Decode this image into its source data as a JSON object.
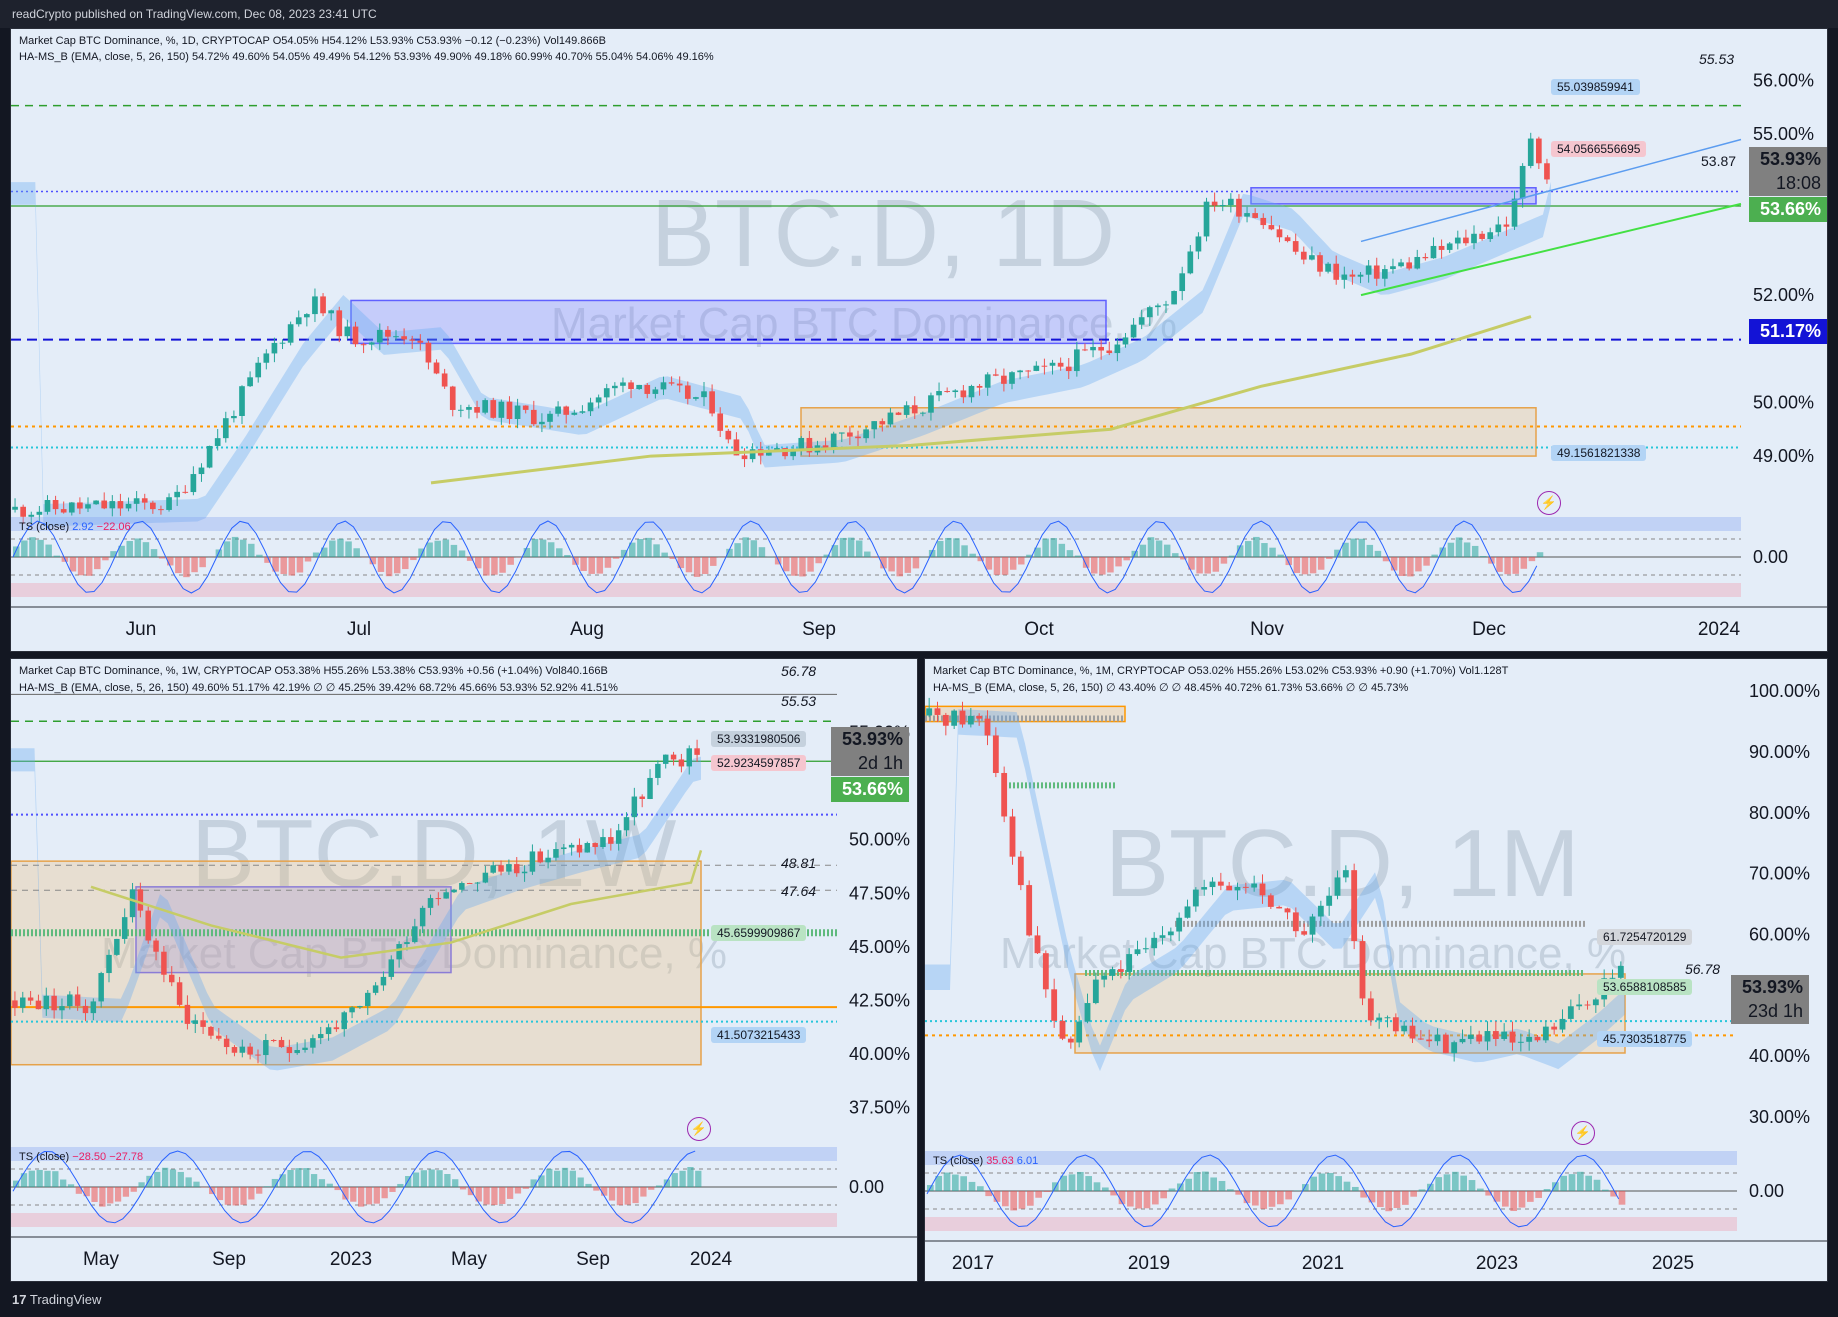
{
  "page": {
    "published": "readCrypto published on TradingView.com, Dec 08, 2023 23:41 UTC",
    "footer_brand": "TradingView",
    "footer_logo": "tradingview-logo-icon"
  },
  "colors": {
    "background": "#e4edf8",
    "candle_up": "#26a69a",
    "candle_down": "#ef5350",
    "price_tag": "#808080",
    "green_tag": "#4caf50",
    "blue_tag": "#1313d6",
    "trend_line": "#5b9cf0",
    "support_line": "#43e043"
  },
  "panels": [
    {
      "id": "daily",
      "title_line": "Market Cap BTC Dominance, %, 1D, CRYPTOCAP  O54.05%  H54.12%  L53.93%  C53.93%  −0.12 (−0.23%)  Vol149.866B",
      "indicator_line": "HA-MS_B (EMA, close, 5, 26, 150)  54.72%  49.60%  54.05%  49.49%  54.12%  53.93%  49.90%  49.18%  60.99%  40.70%  55.04%  54.06%  49.16%",
      "watermark_big": "BTC.D, 1D",
      "watermark_small": "Market Cap BTC Dominance, %",
      "ts_label": "TS (close)",
      "ts_values": [
        "2.92",
        "−22.06"
      ],
      "ts_zero": "0.00",
      "price_labels": [
        "56.00%",
        "55.00%",
        "52.00%",
        "50.00%",
        "49.00%"
      ],
      "level_labels": [
        "55.53",
        "53.87"
      ],
      "level_boxes": [
        "55.039859941",
        "54.0566556695",
        "49.1561821338"
      ],
      "price_tag": "53.93%",
      "countdown": "18:08",
      "green_tag": "53.66%",
      "blue_tag": "51.17%",
      "x_labels": [
        "Jun",
        "Jul",
        "Aug",
        "Sep",
        "Oct",
        "Nov",
        "Dec",
        "2024"
      ]
    },
    {
      "id": "weekly",
      "title_line": "Market Cap BTC Dominance, %, 1W, CRYPTOCAP  O53.38%  H55.26%  L53.38%  C53.93%  +0.56 (+1.04%)  Vol840.166B",
      "indicator_line": "HA-MS_B (EMA, close, 5, 26, 150)  49.60%  51.17%  42.19%  ∅  ∅  45.25%  39.42%  68.72%  45.66%  53.93%  52.92%  41.51%",
      "watermark_big": "BTC.D, 1W",
      "watermark_small": "Market Cap BTC Dominance, %",
      "ts_label": "TS (close)",
      "ts_values": [
        "−28.50",
        "−27.78"
      ],
      "ts_zero": "0.00",
      "price_labels": [
        "55.00%",
        "50.00%",
        "47.50%",
        "45.00%",
        "42.50%",
        "40.00%",
        "37.50%"
      ],
      "level_labels": [
        "56.78",
        "55.53",
        "48.81",
        "47.64"
      ],
      "level_boxes": [
        "53.9331980506",
        "52.9234597857",
        "45.6599909867",
        "41.5073215433"
      ],
      "price_tag": "53.93%",
      "countdown": "2d 1h",
      "green_tag": "53.66%",
      "x_labels": [
        "May",
        "Sep",
        "2023",
        "May",
        "Sep",
        "2024"
      ]
    },
    {
      "id": "monthly",
      "title_line": "Market Cap BTC Dominance, %, 1M, CRYPTOCAP  O53.02%  H55.26%  L53.02%  C53.93%  +0.90 (+1.70%)  Vol1.128T",
      "indicator_line": "HA-MS_B (EMA, close, 5, 26, 150)  ∅  43.40%  ∅  ∅  48.45%  40.72%  61.73%  53.66%  ∅  ∅  45.73%",
      "watermark_big": "BTC.D, 1M",
      "watermark_small": "Market Cap BTC Dominance, %",
      "ts_label": "TS (close)",
      "ts_values": [
        "35.63",
        "6.01"
      ],
      "ts_zero": "0.00",
      "price_labels": [
        "100.00%",
        "90.00%",
        "80.00%",
        "70.00%",
        "60.00%",
        "40.00%",
        "30.00%"
      ],
      "level_labels": [
        "56.78"
      ],
      "level_boxes": [
        "61.7254720129",
        "53.6588108585",
        "45.7303518775"
      ],
      "price_tag": "53.93%",
      "countdown": "23d 1h",
      "x_labels": [
        "2017",
        "2019",
        "2021",
        "2023",
        "2025"
      ]
    }
  ],
  "chart_data": [
    {
      "type": "candlestick",
      "title": "Market Cap BTC Dominance, %, 1D",
      "x": [
        "Jun",
        "Jul",
        "Aug",
        "Sep",
        "Oct",
        "Nov",
        "Dec"
      ],
      "close_approx": [
        48.2,
        51.3,
        50.3,
        49.1,
        50.6,
        53.0,
        54.0
      ],
      "last": {
        "open": 54.05,
        "high": 54.12,
        "low": 53.93,
        "close": 53.93
      },
      "ylim": [
        48.0,
        56.0
      ]
    },
    {
      "type": "candlestick",
      "title": "Market Cap BTC Dominance, %, 1W",
      "x": [
        "May",
        "Sep",
        "2023",
        "May",
        "Sep",
        "2024"
      ],
      "close_approx": [
        42.8,
        40.2,
        40.5,
        47.5,
        49.5,
        53.9
      ],
      "last": {
        "open": 53.38,
        "high": 55.26,
        "low": 53.38,
        "close": 53.93
      },
      "ylim": [
        37.5,
        57.0
      ]
    },
    {
      "type": "candlestick",
      "title": "Market Cap BTC Dominance, %, 1M",
      "x": [
        "2017",
        "2019",
        "2021",
        "2023",
        "2025"
      ],
      "close_approx": [
        96.0,
        52.0,
        62.0,
        42.0,
        53.9
      ],
      "last": {
        "open": 53.02,
        "high": 55.26,
        "low": 53.02,
        "close": 53.93
      },
      "ylim": [
        30.0,
        100.0
      ]
    }
  ]
}
